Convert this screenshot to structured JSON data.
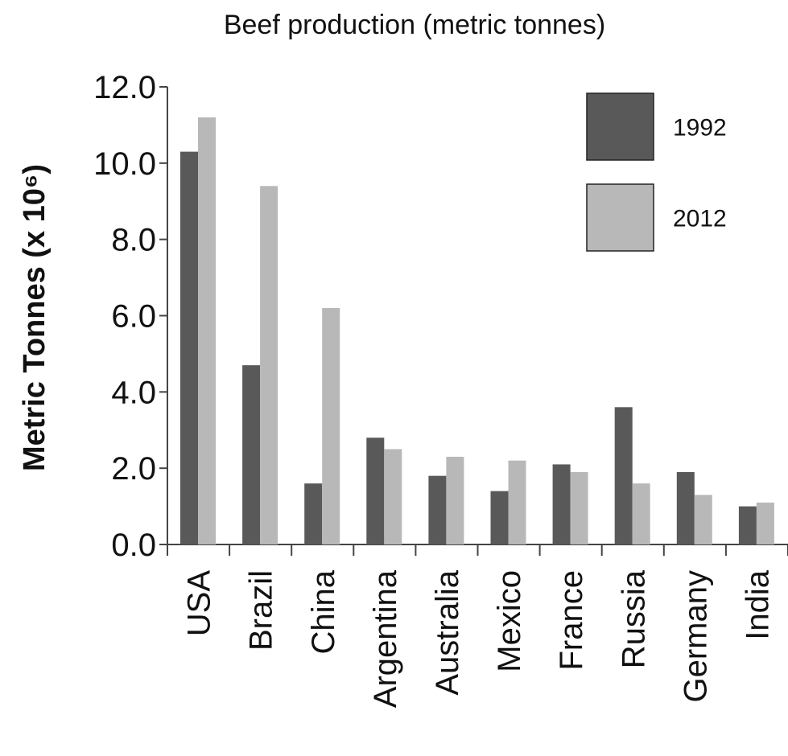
{
  "chart_data": {
    "type": "bar",
    "title": "Beef production (metric tonnes)",
    "ylabel": "Metric Tonnes (x 10⁶)",
    "xlabel": "",
    "ylim": [
      0,
      12
    ],
    "yticks": [
      0,
      2,
      4,
      6,
      8,
      10,
      12
    ],
    "ytick_labels": [
      "0.0",
      "2.0",
      "4.0",
      "6.0",
      "8.0",
      "10.0",
      "12.0"
    ],
    "categories": [
      "USA",
      "Brazil",
      "China",
      "Argentina",
      "Australia",
      "Mexico",
      "France",
      "Russia",
      "Germany",
      "India"
    ],
    "series": [
      {
        "name": "1992",
        "color": "#595959",
        "values": [
          10.3,
          4.7,
          1.6,
          2.8,
          1.8,
          1.4,
          2.1,
          3.6,
          1.9,
          1.0
        ]
      },
      {
        "name": "2012",
        "color": "#b8b8b8",
        "values": [
          11.2,
          9.4,
          6.2,
          2.5,
          2.3,
          2.2,
          1.9,
          1.6,
          1.3,
          1.1
        ]
      }
    ],
    "grid": false,
    "legend_position": "top-right"
  }
}
